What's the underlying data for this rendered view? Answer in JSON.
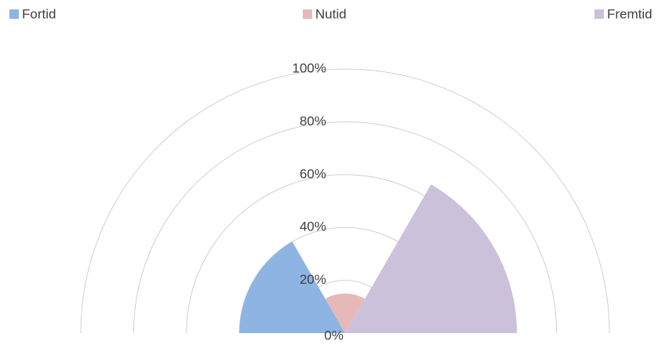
{
  "chart_data": {
    "type": "polarArea",
    "categories": [
      "Fortid",
      "Nutid",
      "Fremtid"
    ],
    "values": [
      40,
      15,
      65
    ],
    "colors": [
      "#8eb4e3",
      "#e6b9b8",
      "#ccc1da"
    ],
    "rlim": [
      0,
      100
    ],
    "rticks": [
      {
        "value": 0,
        "label": "0%"
      },
      {
        "value": 20,
        "label": "20%"
      },
      {
        "value": 40,
        "label": "40%"
      },
      {
        "value": 60,
        "label": "60%"
      },
      {
        "value": 80,
        "label": "80%"
      },
      {
        "value": 100,
        "label": "100%"
      }
    ],
    "grid": true,
    "legend": "top"
  }
}
